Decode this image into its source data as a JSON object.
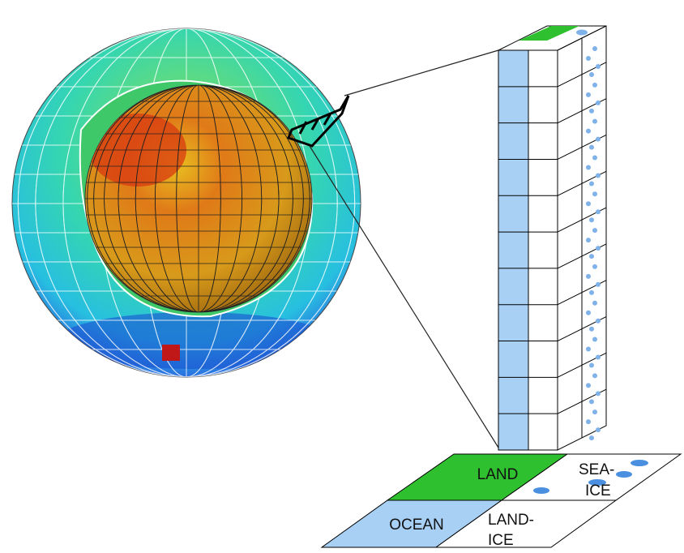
{
  "labels": {
    "land": "LAND",
    "sea_ice": [
      "SEA-",
      "ICE"
    ],
    "ocean": "OCEAN",
    "land_ice": [
      "LAND-",
      "ICE"
    ]
  }
}
